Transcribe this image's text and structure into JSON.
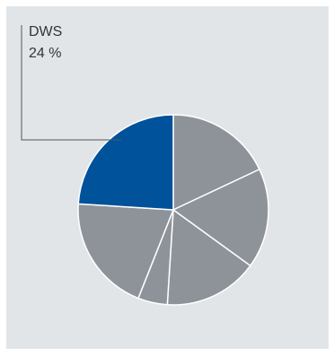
{
  "chart_data": {
    "type": "pie",
    "title": "",
    "slices": [
      {
        "label": "DWS",
        "value": 24,
        "highlight": true
      },
      {
        "label": "",
        "value": 18
      },
      {
        "label": "",
        "value": 17
      },
      {
        "label": "",
        "value": 16
      },
      {
        "label": "",
        "value": 5
      },
      {
        "label": "",
        "value": 20
      }
    ],
    "start_angle_deg": 0,
    "direction": "counterclockwise-from-highlight",
    "colors": {
      "highlight": "#00529b",
      "other": "#8e9399",
      "separator": "#ffffff",
      "background": "#e2e5e8"
    },
    "callout": {
      "name": "DWS",
      "value_text": "24 %"
    }
  }
}
